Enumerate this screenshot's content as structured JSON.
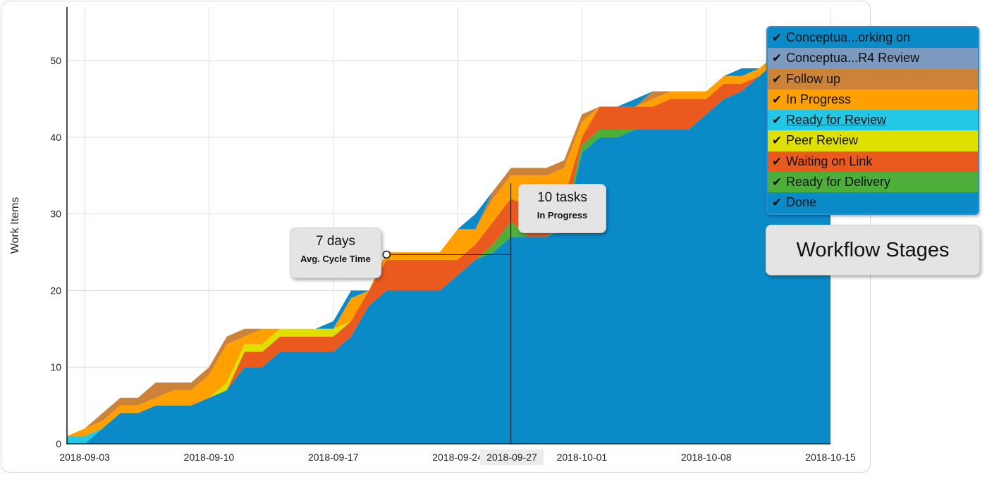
{
  "chart_data": {
    "type": "area",
    "stacked": true,
    "ylabel": "Work Items",
    "xlabel": "",
    "ylim": [
      0,
      57
    ],
    "yticks": [
      0,
      10,
      20,
      30,
      40,
      50
    ],
    "xticks": [
      "2018-09-03",
      "2018-09-10",
      "2018-09-17",
      "2018-09-24",
      "2018-10-01",
      "2018-10-08",
      "2018-10-15"
    ],
    "x_range": [
      "2018-09-02",
      "2018-10-15"
    ],
    "grid": true,
    "legend_position": "top-right",
    "x": [
      "2018-09-02",
      "2018-09-03",
      "2018-09-04",
      "2018-09-05",
      "2018-09-06",
      "2018-09-07",
      "2018-09-08",
      "2018-09-09",
      "2018-09-10",
      "2018-09-11",
      "2018-09-12",
      "2018-09-13",
      "2018-09-14",
      "2018-09-15",
      "2018-09-16",
      "2018-09-17",
      "2018-09-18",
      "2018-09-19",
      "2018-09-20",
      "2018-09-21",
      "2018-09-22",
      "2018-09-23",
      "2018-09-24",
      "2018-09-25",
      "2018-09-26",
      "2018-09-27",
      "2018-09-28",
      "2018-09-29",
      "2018-09-30",
      "2018-10-01",
      "2018-10-02",
      "2018-10-03",
      "2018-10-04",
      "2018-10-05",
      "2018-10-06",
      "2018-10-07",
      "2018-10-08",
      "2018-10-09",
      "2018-10-10",
      "2018-10-11",
      "2018-10-12",
      "2018-10-13",
      "2018-10-14",
      "2018-10-15"
    ],
    "series": [
      {
        "name": "Done",
        "color": "#0a8bc8",
        "values": [
          0,
          0,
          2,
          4,
          4,
          5,
          5,
          5,
          6,
          7,
          10,
          10,
          12,
          12,
          12,
          12,
          14,
          18,
          20,
          20,
          20,
          20,
          22,
          24,
          25,
          27,
          27,
          27,
          28,
          38,
          40,
          40,
          41,
          41,
          41,
          41,
          43,
          45,
          46,
          48,
          50,
          50,
          50,
          50
        ]
      },
      {
        "name": "Ready for Delivery",
        "color": "#4caf3a",
        "values": [
          0,
          0,
          0,
          0,
          0,
          0,
          0,
          0,
          0,
          0,
          0,
          0,
          0,
          0,
          0,
          0,
          0,
          0,
          0,
          0,
          0,
          0,
          0,
          0,
          1,
          2,
          0,
          0,
          1,
          1,
          1,
          1,
          0,
          0,
          0,
          0,
          0,
          0,
          0,
          0,
          0,
          0,
          0,
          0
        ]
      },
      {
        "name": "Waiting on Link",
        "color": "#ea5a1e",
        "values": [
          0,
          0,
          0,
          0,
          0,
          0,
          0,
          0,
          0,
          0,
          2,
          2,
          2,
          2,
          2,
          2,
          2,
          2,
          4,
          4,
          4,
          4,
          2,
          2,
          3,
          3,
          4,
          4,
          3,
          1,
          3,
          3,
          3,
          3,
          4,
          4,
          2,
          2,
          1,
          0,
          0,
          0,
          0,
          0
        ]
      },
      {
        "name": "Peer Review",
        "color": "#dfe000",
        "values": [
          0,
          0,
          0,
          0,
          0,
          0,
          0,
          0,
          0,
          1,
          1,
          1,
          1,
          1,
          1,
          1,
          0,
          0,
          0,
          0,
          0,
          0,
          0,
          0,
          0,
          0,
          0,
          0,
          0,
          0,
          0,
          0,
          0,
          0,
          0,
          0,
          0,
          0,
          0,
          0,
          0,
          0,
          0,
          0
        ]
      },
      {
        "name": "Ready for Review",
        "color": "#22c8e6",
        "values": [
          1,
          1,
          0,
          0,
          0,
          0,
          0,
          0,
          0,
          0,
          0,
          0,
          0,
          0,
          0,
          0,
          0,
          0,
          0,
          0,
          0,
          0,
          0,
          0,
          0,
          0,
          0,
          0,
          0,
          0,
          0,
          0,
          0,
          0,
          0,
          0,
          0,
          0,
          0,
          0,
          0,
          0,
          0,
          0
        ]
      },
      {
        "name": "In Progress",
        "color": "#ffa000",
        "values": [
          0,
          1,
          1,
          1,
          1,
          1,
          2,
          2,
          3,
          5,
          1,
          2,
          0,
          0,
          0,
          0,
          3,
          0,
          1,
          1,
          1,
          1,
          4,
          2,
          3,
          3,
          4,
          4,
          4,
          2,
          0,
          0,
          0,
          1,
          1,
          1,
          1,
          1,
          1,
          1,
          1,
          0,
          0,
          0
        ]
      },
      {
        "name": "Follow up",
        "color": "#cc8338",
        "values": [
          0,
          0,
          1,
          1,
          1,
          2,
          1,
          1,
          1,
          1,
          1,
          0,
          0,
          0,
          0,
          0,
          0,
          0,
          0,
          0,
          0,
          0,
          0,
          0,
          1,
          1,
          1,
          1,
          1,
          1,
          0,
          0,
          0,
          1,
          0,
          0,
          0,
          0,
          0,
          0,
          0,
          0,
          0,
          0
        ]
      },
      {
        "name": "Conceptual R4 Review",
        "color": "#7c99c0",
        "values": [
          0,
          0,
          0,
          0,
          0,
          0,
          0,
          0,
          0,
          0,
          0,
          0,
          0,
          0,
          0,
          0,
          0,
          0,
          0,
          0,
          0,
          0,
          0,
          0,
          0,
          0,
          0,
          0,
          0,
          0,
          0,
          0,
          0,
          0,
          0,
          0,
          0,
          0,
          0,
          0,
          0,
          0,
          0,
          0
        ]
      },
      {
        "name": "Conceptual working on",
        "color": "#0a8bc8",
        "values": [
          0,
          0,
          0,
          0,
          0,
          0,
          0,
          0,
          0,
          0,
          0,
          0,
          0,
          0,
          0,
          1,
          1,
          0,
          0,
          0,
          0,
          0,
          0,
          2,
          0,
          0,
          0,
          0,
          0,
          0,
          0,
          0,
          1,
          0,
          0,
          0,
          0,
          0,
          1,
          0,
          0,
          0,
          0,
          0
        ]
      }
    ],
    "annotations": {
      "cycle_time": {
        "value": "7 days",
        "label": "Avg. Cycle Time"
      },
      "wip": {
        "value": "10 tasks",
        "label": "In Progress"
      },
      "cursor_date": "2018-09-27"
    }
  },
  "legend": {
    "items": [
      {
        "label": "Conceptua...orking on",
        "color": "#0a8bc8",
        "check": "✔",
        "underline": false
      },
      {
        "label": "Conceptua...R4 Review",
        "color": "#7c99c0",
        "check": "✔",
        "underline": false
      },
      {
        "label": "Follow up",
        "color": "#cc8338",
        "check": "✔",
        "underline": false
      },
      {
        "label": "In Progress",
        "color": "#ffa000",
        "check": "✔",
        "underline": false
      },
      {
        "label": "Ready for Review",
        "color": "#22c8e6",
        "check": "✔",
        "underline": true
      },
      {
        "label": "Peer Review",
        "color": "#dfe000",
        "check": "✔",
        "underline": false
      },
      {
        "label": "Waiting on Link",
        "color": "#ea5a1e",
        "check": "✔",
        "underline": false
      },
      {
        "label": "Ready for Delivery",
        "color": "#4caf3a",
        "check": "✔",
        "underline": false
      },
      {
        "label": "Done",
        "color": "#0a8bc8",
        "check": "✔",
        "underline": false
      }
    ]
  },
  "button": {
    "label": "Workflow Stages"
  },
  "grid_color": "#dddddd"
}
